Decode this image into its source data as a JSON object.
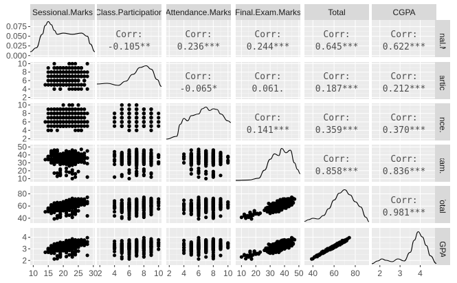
{
  "chart_data": {
    "type": "scatter-matrix",
    "variables": [
      "Sessional.Marks",
      "Class.Participation",
      "Attendance.Marks",
      "Final.Exam.Marks",
      "Total",
      "CGPA"
    ],
    "row_strip_labels": [
      "Sessional.Marks",
      "Class.Participation",
      "Attendance.Marks",
      "Final.Exam.Marks",
      "Total",
      "CGPA"
    ],
    "corr_label": "Corr:",
    "correlations": [
      {
        "row": 0,
        "col": 1,
        "value": "-0.105**"
      },
      {
        "row": 0,
        "col": 2,
        "value": "0.236***"
      },
      {
        "row": 0,
        "col": 3,
        "value": "0.244***"
      },
      {
        "row": 0,
        "col": 4,
        "value": "0.645***"
      },
      {
        "row": 0,
        "col": 5,
        "value": "0.622***"
      },
      {
        "row": 1,
        "col": 2,
        "value": "-0.065*"
      },
      {
        "row": 1,
        "col": 3,
        "value": "0.061."
      },
      {
        "row": 1,
        "col": 4,
        "value": "0.187***"
      },
      {
        "row": 1,
        "col": 5,
        "value": "0.212***"
      },
      {
        "row": 2,
        "col": 3,
        "value": "0.141***"
      },
      {
        "row": 2,
        "col": 4,
        "value": "0.359***"
      },
      {
        "row": 2,
        "col": 5,
        "value": "0.370***"
      },
      {
        "row": 3,
        "col": 4,
        "value": "0.858***"
      },
      {
        "row": 3,
        "col": 5,
        "value": "0.836***"
      },
      {
        "row": 4,
        "col": 5,
        "value": "0.981***"
      }
    ],
    "x_ticks": [
      {
        "var": 0,
        "ticks": [
          10,
          15,
          20,
          25,
          30
        ],
        "range": [
          9,
          30.5
        ]
      },
      {
        "var": 1,
        "ticks": [
          2,
          4,
          6,
          8,
          10
        ],
        "range": [
          1.6,
          10.4
        ]
      },
      {
        "var": 2,
        "ticks": [
          2,
          4,
          6,
          8,
          10
        ],
        "range": [
          1.6,
          10.4
        ]
      },
      {
        "var": 3,
        "ticks": [
          10,
          20,
          30,
          40,
          50
        ],
        "range": [
          6,
          51
        ]
      },
      {
        "var": 4,
        "ticks": [
          40,
          60,
          80
        ],
        "range": [
          32,
          93
        ]
      },
      {
        "var": 5,
        "ticks": [
          2,
          3,
          4
        ],
        "range": [
          1.6,
          4.8
        ]
      }
    ],
    "y_ticks": [
      {
        "row": 0,
        "labels": [
          "0.075",
          "0.050",
          "0.025",
          "0.000"
        ],
        "ticks": [
          0.075,
          0.05,
          0.025,
          0.0
        ],
        "range": [
          -0.004,
          0.092
        ]
      },
      {
        "row": 1,
        "labels": [
          "10",
          "8",
          "6",
          "4",
          "2"
        ],
        "ticks": [
          10,
          8,
          6,
          4,
          2
        ],
        "range": [
          1.6,
          10.4
        ]
      },
      {
        "row": 2,
        "labels": [
          "10",
          "8",
          "6",
          "4",
          "2"
        ],
        "ticks": [
          10,
          8,
          6,
          4,
          2
        ],
        "range": [
          1.6,
          10.4
        ]
      },
      {
        "row": 3,
        "labels": [
          "50",
          "40",
          "30",
          "20",
          "10"
        ],
        "ticks": [
          50,
          40,
          30,
          20,
          10
        ],
        "range": [
          6,
          53
        ]
      },
      {
        "row": 4,
        "labels": [
          "80",
          "60",
          "40"
        ],
        "ticks": [
          80,
          60,
          40
        ],
        "range": [
          32,
          93
        ]
      },
      {
        "row": 5,
        "labels": [
          "4",
          "3",
          "2"
        ],
        "ticks": [
          4,
          3,
          2
        ],
        "range": [
          1.6,
          4.8
        ]
      }
    ],
    "density_curves": [
      {
        "var": 0,
        "x": [
          9,
          11,
          13,
          14,
          15,
          16,
          17,
          18,
          20,
          23,
          26,
          28,
          29,
          30.5
        ],
        "y": [
          0.01,
          0.02,
          0.055,
          0.078,
          0.088,
          0.08,
          0.065,
          0.055,
          0.058,
          0.055,
          0.058,
          0.05,
          0.03,
          0.01
        ]
      },
      {
        "var": 1,
        "x": [
          1.6,
          3,
          4.5,
          5.5,
          6.5,
          7.5,
          8.3,
          9,
          9.8,
          10.4
        ],
        "y": [
          0.42,
          0.44,
          0.38,
          0.5,
          0.7,
          0.9,
          0.95,
          0.85,
          0.55,
          0.35
        ]
      },
      {
        "var": 2,
        "x": [
          1.6,
          3,
          3.5,
          4,
          4.5,
          5,
          6,
          6.5,
          7,
          7.5,
          8,
          8.5,
          9,
          10,
          10.4
        ],
        "y": [
          0.02,
          0.1,
          0.45,
          0.62,
          0.55,
          0.7,
          0.75,
          0.9,
          0.95,
          0.85,
          0.9,
          0.88,
          0.75,
          0.55,
          0.5
        ]
      },
      {
        "var": 3,
        "x": [
          6,
          15,
          22,
          26,
          30,
          33,
          36,
          38,
          41,
          44,
          47,
          49,
          51
        ],
        "y": [
          0.02,
          0.03,
          0.08,
          0.3,
          0.6,
          0.75,
          0.7,
          0.9,
          0.78,
          0.85,
          0.5,
          0.32,
          0.2
        ]
      },
      {
        "var": 4,
        "x": [
          32,
          36,
          40,
          45,
          50,
          55,
          60,
          65,
          70,
          75,
          80,
          85,
          90,
          93
        ],
        "y": [
          0.03,
          0.08,
          0.12,
          0.1,
          0.2,
          0.4,
          0.65,
          0.85,
          0.95,
          0.8,
          0.6,
          0.45,
          0.15,
          0.02
        ]
      },
      {
        "var": 5,
        "x": [
          1.6,
          1.9,
          2.1,
          2.3,
          2.6,
          2.9,
          3.2,
          3.5,
          3.7,
          3.9,
          4.1,
          4.3,
          4.5,
          4.8
        ],
        "y": [
          0.02,
          0.1,
          0.16,
          0.12,
          0.08,
          0.16,
          0.1,
          0.35,
          0.7,
          0.95,
          0.8,
          0.55,
          0.25,
          0.03
        ]
      }
    ]
  }
}
